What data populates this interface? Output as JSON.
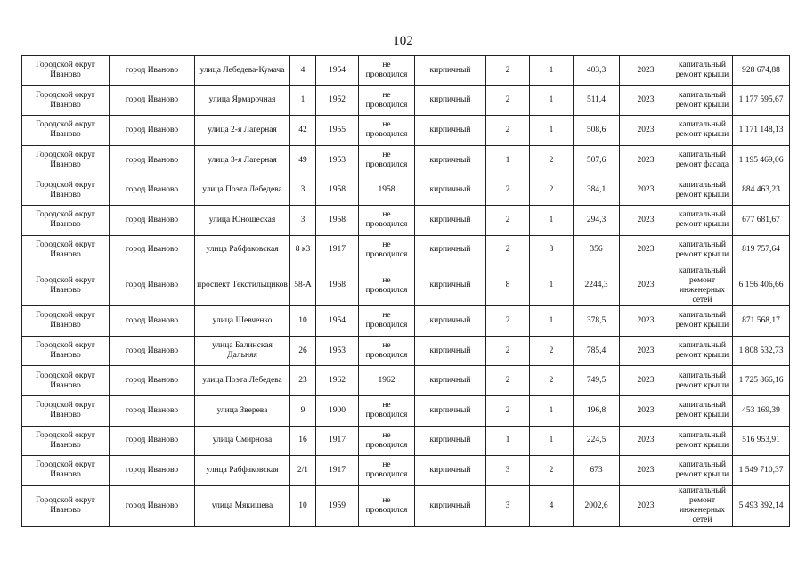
{
  "page_number": "102",
  "rows": [
    [
      "Городской округ Иваново",
      "город Иваново",
      "улица Лебедева-Кумача",
      "4",
      "1954",
      "не проводился",
      "кирпичный",
      "2",
      "1",
      "403,3",
      "2023",
      "капитальный ремонт крыши",
      "928 674,88"
    ],
    [
      "Городской округ Иваново",
      "город Иваново",
      "улица Ярмарочная",
      "1",
      "1952",
      "не проводился",
      "кирпичный",
      "2",
      "1",
      "511,4",
      "2023",
      "капитальный ремонт крыши",
      "1 177 595,67"
    ],
    [
      "Городской округ Иваново",
      "город Иваново",
      "улица 2-я Лагерная",
      "42",
      "1955",
      "не проводился",
      "кирпичный",
      "2",
      "1",
      "508,6",
      "2023",
      "капитальный ремонт крыши",
      "1 171 148,13"
    ],
    [
      "Городской округ Иваново",
      "город Иваново",
      "улица 3-я Лагерная",
      "49",
      "1953",
      "не проводился",
      "кирпичный",
      "1",
      "2",
      "507,6",
      "2023",
      "капитальный ремонт фасада",
      "1 195 469,06"
    ],
    [
      "Городской округ Иваново",
      "город Иваново",
      "улица Поэта Лебедева",
      "3",
      "1958",
      "1958",
      "кирпичный",
      "2",
      "2",
      "384,1",
      "2023",
      "капитальный ремонт крыши",
      "884 463,23"
    ],
    [
      "Городской округ Иваново",
      "город Иваново",
      "улица Юношеская",
      "3",
      "1958",
      "не проводился",
      "кирпичный",
      "2",
      "1",
      "294,3",
      "2023",
      "капитальный ремонт крыши",
      "677 681,67"
    ],
    [
      "Городской округ Иваново",
      "город Иваново",
      "улица Рабфаковская",
      "8 к3",
      "1917",
      "не проводился",
      "кирпичный",
      "2",
      "3",
      "356",
      "2023",
      "капитальный ремонт крыши",
      "819 757,64"
    ],
    [
      "Городской округ Иваново",
      "город Иваново",
      "проспект Текстильщиков",
      "58-А",
      "1968",
      "не проводился",
      "кирпичный",
      "8",
      "1",
      "2244,3",
      "2023",
      "капитальный ремонт инженерных сетей",
      "6 156 406,66"
    ],
    [
      "Городской округ Иваново",
      "город Иваново",
      "улица Шевченко",
      "10",
      "1954",
      "не проводился",
      "кирпичный",
      "2",
      "1",
      "378,5",
      "2023",
      "капитальный ремонт крыши",
      "871 568,17"
    ],
    [
      "Городской округ Иваново",
      "город Иваново",
      "улица Балинская Дальняя",
      "26",
      "1953",
      "не проводился",
      "кирпичный",
      "2",
      "2",
      "785,4",
      "2023",
      "капитальный ремонт крыши",
      "1 808 532,73"
    ],
    [
      "Городской округ Иваново",
      "город Иваново",
      "улица Поэта Лебедева",
      "23",
      "1962",
      "1962",
      "кирпичный",
      "2",
      "2",
      "749,5",
      "2023",
      "капитальный ремонт крыши",
      "1 725 866,16"
    ],
    [
      "Городской округ Иваново",
      "город Иваново",
      "улица Зверева",
      "9",
      "1900",
      "не проводился",
      "кирпичный",
      "2",
      "1",
      "196,8",
      "2023",
      "капитальный ремонт крыши",
      "453 169,39"
    ],
    [
      "Городской округ Иваново",
      "город Иваново",
      "улица Смирнова",
      "16",
      "1917",
      "не проводился",
      "кирпичный",
      "1",
      "1",
      "224,5",
      "2023",
      "капитальный ремонт крыши",
      "516 953,91"
    ],
    [
      "Городской округ Иваново",
      "город Иваново",
      "улица Рабфаковская",
      "2/1",
      "1917",
      "не проводился",
      "кирпичный",
      "3",
      "2",
      "673",
      "2023",
      "капитальный ремонт крыши",
      "1 549 710,37"
    ],
    [
      "Городской округ Иваново",
      "город Иваново",
      "улица Мякишева",
      "10",
      "1959",
      "не проводился",
      "кирпичный",
      "3",
      "4",
      "2002,6",
      "2023",
      "капитальный ремонт инженерных сетей",
      "5 493 392,14"
    ]
  ]
}
